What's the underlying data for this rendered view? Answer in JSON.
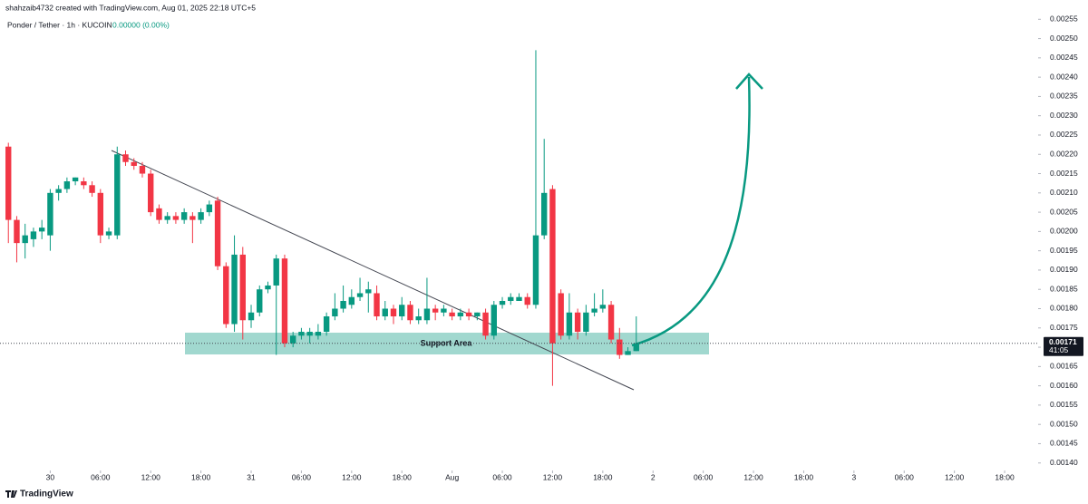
{
  "chart_data": {
    "type": "candlestick",
    "subtitle": "shahzaib4732 created with TradingView.com, Aug 01, 2025 22:18 UTC+5",
    "title": "Ponder / Tether · 1h · KUCOIN",
    "change": "0.00000 (0.00%)",
    "up_color": "#089981",
    "down_color": "#f23645",
    "open": [
      0.00222,
      0.00203,
      0.00197,
      0.00198,
      0.002,
      0.00199,
      0.0021,
      0.00211,
      0.00213,
      0.00213,
      0.00212,
      0.0021,
      0.00199,
      0.00199,
      0.0022,
      0.00218,
      0.00217,
      0.00215,
      0.00206,
      0.00203,
      0.00204,
      0.00203,
      0.00204,
      0.00203,
      0.00205,
      0.00208,
      0.00191,
      0.00176,
      0.00194,
      0.00177,
      0.00179,
      0.00185,
      0.00186,
      0.00193,
      0.00171,
      0.00173,
      0.00173,
      0.00173,
      0.00174,
      0.00178,
      0.0018,
      0.00181,
      0.00183,
      0.00184,
      0.00184,
      0.00178,
      0.0018,
      0.00178,
      0.00181,
      0.00177,
      0.00177,
      0.0018,
      0.00179,
      0.00179,
      0.00178,
      0.00179,
      0.00178,
      0.00179,
      0.00173,
      0.00181,
      0.00182,
      0.00182,
      0.00183,
      0.00181,
      0.00199,
      0.00211,
      0.00184,
      0.00173,
      0.00179,
      0.00174,
      0.00179,
      0.0018,
      0.00181,
      0.00172,
      0.00168,
      0.00169
    ],
    "high": [
      0.00223,
      0.00204,
      0.00202,
      0.00201,
      0.00203,
      0.00211,
      0.00212,
      0.00214,
      0.00214,
      0.00214,
      0.00213,
      0.00211,
      0.00201,
      0.00222,
      0.00221,
      0.00219,
      0.00218,
      0.00216,
      0.00207,
      0.00205,
      0.00205,
      0.00206,
      0.00205,
      0.00206,
      0.00208,
      0.00209,
      0.00192,
      0.00199,
      0.00196,
      0.00181,
      0.00186,
      0.00187,
      0.00194,
      0.00194,
      0.00174,
      0.00175,
      0.00175,
      0.00176,
      0.00179,
      0.00184,
      0.00186,
      0.00185,
      0.00188,
      0.00187,
      0.00186,
      0.00182,
      0.00181,
      0.00183,
      0.00182,
      0.0018,
      0.00188,
      0.00181,
      0.00181,
      0.0018,
      0.0018,
      0.0018,
      0.00179,
      0.0018,
      0.00182,
      0.00183,
      0.00184,
      0.00184,
      0.00184,
      0.00247,
      0.00224,
      0.00212,
      0.00185,
      0.00184,
      0.0018,
      0.00181,
      0.00184,
      0.00185,
      0.00182,
      0.00175,
      0.0017,
      0.00178
    ],
    "low": [
      0.00197,
      0.00192,
      0.00193,
      0.00196,
      0.00198,
      0.00195,
      0.00208,
      0.0021,
      0.00212,
      0.00211,
      0.00209,
      0.00197,
      0.00198,
      0.00198,
      0.00217,
      0.00216,
      0.00214,
      0.00204,
      0.00202,
      0.00202,
      0.00202,
      0.00202,
      0.00197,
      0.00202,
      0.00204,
      0.0019,
      0.00175,
      0.00174,
      0.00172,
      0.00175,
      0.00178,
      0.00184,
      0.00168,
      0.0017,
      0.0017,
      0.00172,
      0.00171,
      0.00172,
      0.00173,
      0.00177,
      0.00179,
      0.0018,
      0.00182,
      0.00179,
      0.00177,
      0.00177,
      0.00176,
      0.00177,
      0.00176,
      0.00176,
      0.00176,
      0.00177,
      0.00178,
      0.00177,
      0.00177,
      0.00177,
      0.00177,
      0.00172,
      0.00172,
      0.0018,
      0.00181,
      0.00182,
      0.0018,
      0.0018,
      0.00198,
      0.0016,
      0.00172,
      0.00172,
      0.00172,
      0.00173,
      0.00178,
      0.00179,
      0.00171,
      0.00167,
      0.00168,
      0.00169
    ],
    "close": [
      0.00203,
      0.00197,
      0.00199,
      0.002,
      0.00201,
      0.0021,
      0.00211,
      0.00213,
      0.00214,
      0.00212,
      0.0021,
      0.00199,
      0.002,
      0.0022,
      0.00218,
      0.00217,
      0.00215,
      0.00205,
      0.00203,
      0.00204,
      0.00203,
      0.00205,
      0.00203,
      0.00205,
      0.00207,
      0.00191,
      0.00176,
      0.00194,
      0.00177,
      0.00179,
      0.00185,
      0.00186,
      0.00193,
      0.00171,
      0.00173,
      0.00174,
      0.00174,
      0.00174,
      0.00178,
      0.0018,
      0.00182,
      0.00183,
      0.00184,
      0.00185,
      0.00178,
      0.0018,
      0.00178,
      0.00181,
      0.00177,
      0.00178,
      0.0018,
      0.00179,
      0.0018,
      0.00178,
      0.00179,
      0.00178,
      0.00179,
      0.00173,
      0.00181,
      0.00182,
      0.00183,
      0.00183,
      0.00181,
      0.00199,
      0.0021,
      0.00171,
      0.00173,
      0.00179,
      0.00174,
      0.00179,
      0.0018,
      0.00181,
      0.00172,
      0.00168,
      0.00169,
      0.00171
    ],
    "xlim": [
      -1,
      123
    ],
    "xticks": [
      {
        "value": 5,
        "label": "30"
      },
      {
        "value": 11,
        "label": "06:00"
      },
      {
        "value": 17,
        "label": "12:00"
      },
      {
        "value": 23,
        "label": "18:00"
      },
      {
        "value": 29,
        "label": "31"
      },
      {
        "value": 35,
        "label": "06:00"
      },
      {
        "value": 41,
        "label": "12:00"
      },
      {
        "value": 47,
        "label": "18:00"
      },
      {
        "value": 53,
        "label": "Aug"
      },
      {
        "value": 59,
        "label": "06:00"
      },
      {
        "value": 65,
        "label": "12:00"
      },
      {
        "value": 71,
        "label": "18:00"
      },
      {
        "value": 77,
        "label": "2"
      },
      {
        "value": 83,
        "label": "06:00"
      },
      {
        "value": 89,
        "label": "12:00"
      },
      {
        "value": 95,
        "label": "18:00"
      },
      {
        "value": 101,
        "label": "3"
      },
      {
        "value": 107,
        "label": "06:00"
      },
      {
        "value": 113,
        "label": "12:00"
      },
      {
        "value": 119,
        "label": "18:00"
      }
    ],
    "ylim": [
      0.00139,
      0.0026
    ],
    "yticks": [
      {
        "value": 0.00255,
        "label": "0.00255"
      },
      {
        "value": 0.0025,
        "label": "0.00250"
      },
      {
        "value": 0.00245,
        "label": "0.00245"
      },
      {
        "value": 0.0024,
        "label": "0.00240"
      },
      {
        "value": 0.00235,
        "label": "0.00235"
      },
      {
        "value": 0.0023,
        "label": "0.00230"
      },
      {
        "value": 0.00225,
        "label": "0.00225"
      },
      {
        "value": 0.0022,
        "label": "0.00220"
      },
      {
        "value": 0.00215,
        "label": "0.00215"
      },
      {
        "value": 0.0021,
        "label": "0.00210"
      },
      {
        "value": 0.00205,
        "label": "0.00205"
      },
      {
        "value": 0.002,
        "label": "0.00200"
      },
      {
        "value": 0.00195,
        "label": "0.00195"
      },
      {
        "value": 0.0019,
        "label": "0.00190"
      },
      {
        "value": 0.00185,
        "label": "0.00185"
      },
      {
        "value": 0.0018,
        "label": "0.00180"
      },
      {
        "value": 0.00175,
        "label": "0.00175"
      },
      {
        "value": 0.0017,
        "label": "0.00170"
      },
      {
        "value": 0.00165,
        "label": "0.00165"
      },
      {
        "value": 0.0016,
        "label": "0.00160"
      },
      {
        "value": 0.00155,
        "label": "0.00155"
      },
      {
        "value": 0.0015,
        "label": "0.00150"
      },
      {
        "value": 0.00145,
        "label": "0.00145"
      },
      {
        "value": 0.0014,
        "label": "0.00140"
      }
    ],
    "last_price": 0.00171,
    "countdown": "41:05",
    "annotations": [
      "Support Area"
    ],
    "brand": "TradingView"
  }
}
